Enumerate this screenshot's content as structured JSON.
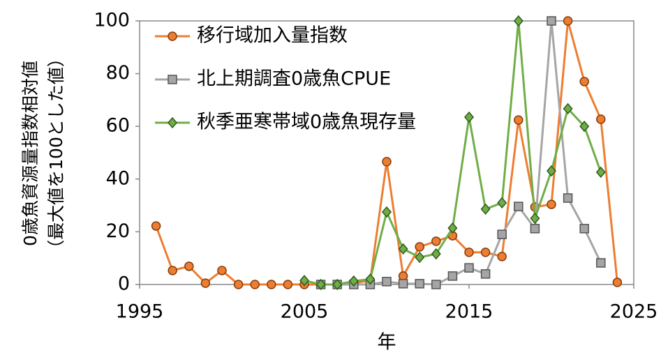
{
  "chart_data": {
    "type": "line",
    "xlabel": "年",
    "ylabel": [
      "0歳魚資源量指数相対値",
      "（最大値を100とした値）"
    ],
    "x": [
      1996,
      1997,
      1998,
      1999,
      2000,
      2001,
      2002,
      2003,
      2004,
      2005,
      2006,
      2007,
      2008,
      2009,
      2010,
      2011,
      2012,
      2013,
      2014,
      2015,
      2016,
      2017,
      2018,
      2019,
      2020,
      2021,
      2022,
      2023,
      2024
    ],
    "series": [
      {
        "name": "移行域加入量指数",
        "color": "#ed7d31",
        "marker": "circle",
        "values": [
          22.2,
          5.3,
          6.9,
          0.5,
          5.3,
          0,
          0,
          0,
          0,
          0,
          0,
          0,
          0.5,
          1.5,
          46.6,
          3.2,
          14.3,
          16.4,
          18.5,
          12.2,
          12.2,
          10.6,
          62.4,
          29.4,
          30.4,
          100,
          77,
          62.7,
          0.8
        ]
      },
      {
        "name": "北上期調査0歳魚CPUE",
        "color": "#a5a5a5",
        "marker": "square",
        "values": [
          null,
          null,
          null,
          null,
          null,
          null,
          null,
          null,
          null,
          null,
          0,
          0,
          0,
          0,
          1.1,
          0.3,
          0.3,
          0,
          3.2,
          6.3,
          4,
          19,
          29.6,
          21.2,
          100,
          32.8,
          21.2,
          8.2,
          null
        ]
      },
      {
        "name": "秋季亜寒帯域0歳魚現存量",
        "color": "#70ad47",
        "marker": "diamond",
        "values": [
          null,
          null,
          null,
          null,
          null,
          null,
          null,
          null,
          null,
          1.5,
          0,
          0,
          1.3,
          2,
          27.5,
          13.5,
          10.3,
          11.6,
          21.4,
          63.5,
          28.6,
          31,
          100,
          25.1,
          43.1,
          66.7,
          60,
          42.6,
          null
        ]
      }
    ],
    "xlim": [
      1995,
      2025
    ],
    "xticks": [
      1995,
      2005,
      2015,
      2025
    ],
    "ylim": [
      0,
      100
    ],
    "yticks": [
      0,
      20,
      40,
      60,
      80,
      100
    ],
    "grid": false,
    "legend": "upper-left"
  }
}
